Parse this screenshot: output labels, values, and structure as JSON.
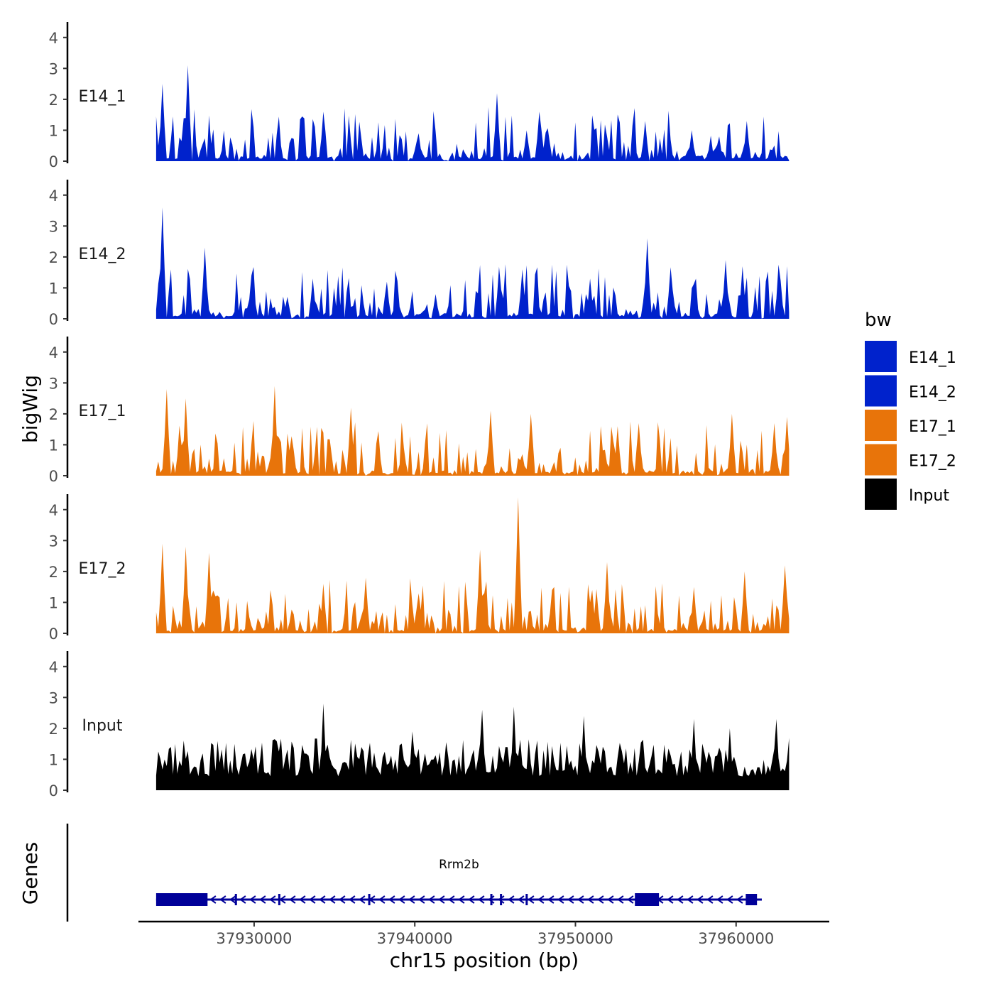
{
  "chart_data": {
    "type": "area",
    "title": "",
    "xlabel": "chr15 position (bp)",
    "ylabel": "bigWig",
    "xlim": [
      37922800,
      37965800
    ],
    "ylim": [
      0,
      4.5
    ],
    "y_ticks": [
      0,
      1,
      2,
      3,
      4
    ],
    "x_ticks": [
      37930000,
      37940000,
      37950000,
      37960000
    ],
    "x_tick_labels": [
      "37930000",
      "37940000",
      "37950000",
      "37960000"
    ],
    "legend": {
      "title": "bw",
      "position": "right",
      "entries": [
        {
          "label": "E14_1",
          "color": "#0022CC"
        },
        {
          "label": "E14_2",
          "color": "#0022CC"
        },
        {
          "label": "E17_1",
          "color": "#E8740A"
        },
        {
          "label": "E17_2",
          "color": "#E8740A"
        },
        {
          "label": "Input",
          "color": "#000000"
        }
      ]
    },
    "signal_range": [
      37923900,
      37963300
    ],
    "series": [
      {
        "name": "E14_1",
        "color": "#0022CC",
        "peaks": [
          [
            37924300,
            2.5
          ],
          [
            37925900,
            3.1
          ],
          [
            37934300,
            1.6
          ],
          [
            37940300,
            0.9
          ],
          [
            37945100,
            2.2
          ],
          [
            37947800,
            1.6
          ],
          [
            37952000,
            0.8
          ],
          [
            37954300,
            1.3
          ],
          [
            37957200,
            1.0
          ],
          [
            37960600,
            1.3
          ]
        ]
      },
      {
        "name": "E14_2",
        "color": "#0022CC",
        "peaks": [
          [
            37924300,
            3.6
          ],
          [
            37926900,
            2.3
          ],
          [
            37929800,
            1.4
          ],
          [
            37933600,
            1.3
          ],
          [
            37938200,
            1.2
          ],
          [
            37941300,
            0.8
          ],
          [
            37946700,
            1.6
          ],
          [
            37950900,
            1.3
          ],
          [
            37954500,
            2.6
          ],
          [
            37959300,
            1.9
          ],
          [
            37960400,
            1.7
          ]
        ]
      },
      {
        "name": "E17_1",
        "color": "#E8740A",
        "peaks": [
          [
            37924600,
            2.8
          ],
          [
            37925800,
            2.5
          ],
          [
            37931300,
            2.9
          ],
          [
            37936000,
            2.2
          ],
          [
            37939300,
            0.9
          ],
          [
            37944700,
            2.1
          ],
          [
            37947200,
            2.0
          ],
          [
            37952600,
            1.6
          ],
          [
            37954000,
            1.7
          ],
          [
            37959700,
            2.0
          ],
          [
            37962400,
            1.7
          ],
          [
            37963200,
            1.9
          ]
        ]
      },
      {
        "name": "E17_2",
        "color": "#E8740A",
        "peaks": [
          [
            37924300,
            2.9
          ],
          [
            37925800,
            2.8
          ],
          [
            37927200,
            2.6
          ],
          [
            37934300,
            1.6
          ],
          [
            37937000,
            1.8
          ],
          [
            37944000,
            2.7
          ],
          [
            37946400,
            4.4
          ],
          [
            37948500,
            1.4
          ],
          [
            37952000,
            2.3
          ],
          [
            37957400,
            1.5
          ],
          [
            37960500,
            2.0
          ],
          [
            37963000,
            2.2
          ]
        ]
      },
      {
        "name": "Input",
        "color": "#000000",
        "peaks": [
          [
            37934300,
            2.8
          ],
          [
            37939900,
            1.9
          ],
          [
            37944200,
            2.6
          ],
          [
            37946200,
            2.7
          ],
          [
            37950500,
            2.4
          ],
          [
            37957400,
            2.3
          ],
          [
            37959600,
            2.0
          ],
          [
            37962500,
            2.3
          ]
        ]
      }
    ],
    "gene_track": {
      "label": "Genes",
      "genes": [
        {
          "name": "Rrm2b",
          "strand": "-",
          "start": 37923900,
          "end": 37961600,
          "color": "#000099",
          "exons": [
            [
              37923900,
              37927100
            ],
            [
              37928800,
              37928900
            ],
            [
              37931500,
              37931600
            ],
            [
              37937100,
              37937200
            ],
            [
              37944700,
              37944800
            ],
            [
              37945300,
              37945400
            ],
            [
              37946900,
              37947000
            ],
            [
              37953700,
              37955200
            ],
            [
              37960600,
              37961300
            ]
          ]
        }
      ]
    }
  }
}
